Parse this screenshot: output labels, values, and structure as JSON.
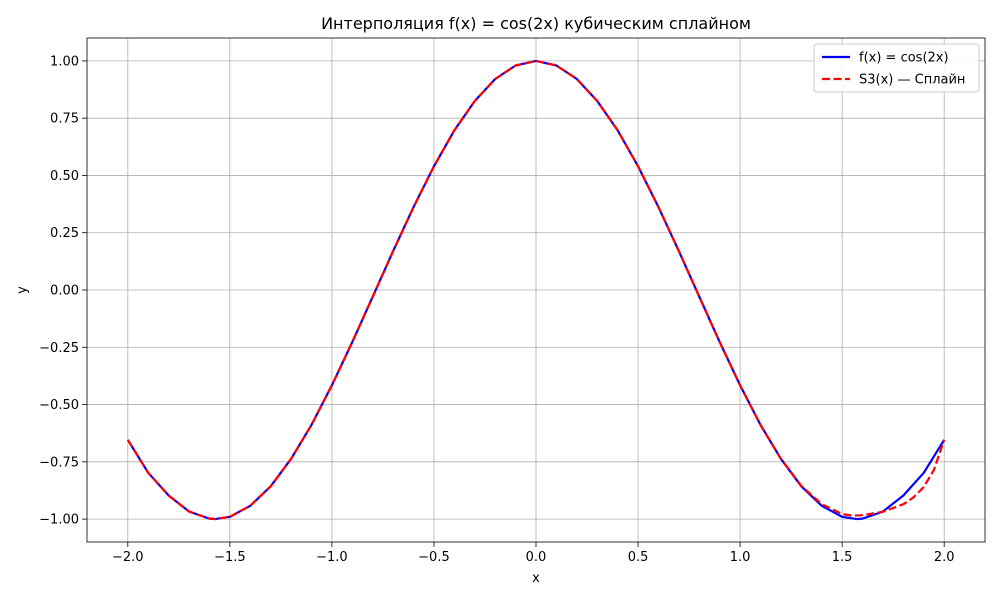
{
  "chart_data": {
    "type": "line",
    "title": "Интерполяция f(x) = cos(2x) кубическим сплайном",
    "xlabel": "x",
    "ylabel": "y",
    "xlim": [
      -2.2,
      2.2
    ],
    "ylim": [
      -1.1,
      1.1
    ],
    "xticks": [
      -2.0,
      -1.5,
      -1.0,
      -0.5,
      0.0,
      0.5,
      1.0,
      1.5,
      2.0
    ],
    "xtick_labels": [
      "−2.0",
      "−1.5",
      "−1.0",
      "−0.5",
      "0.0",
      "0.5",
      "1.0",
      "1.5",
      "2.0"
    ],
    "yticks": [
      -1.0,
      -0.75,
      -0.5,
      -0.25,
      0.0,
      0.25,
      0.5,
      0.75,
      1.0
    ],
    "ytick_labels": [
      "−1.00",
      "−0.75",
      "−0.50",
      "−0.25",
      "0.00",
      "0.25",
      "0.50",
      "0.75",
      "1.00"
    ],
    "grid": true,
    "legend_position": "top-right",
    "series": [
      {
        "name": "f(x) = cos(2x)",
        "color": "#0000ff",
        "style": "solid",
        "x": [
          -2.0,
          -1.9,
          -1.8,
          -1.7,
          -1.6,
          -1.5708,
          -1.5,
          -1.4,
          -1.3,
          -1.2,
          -1.1,
          -1.0,
          -0.9,
          -0.8,
          -0.7,
          -0.6,
          -0.5,
          -0.4,
          -0.3,
          -0.2,
          -0.1,
          0.0,
          0.1,
          0.2,
          0.3,
          0.4,
          0.5,
          0.6,
          0.7,
          0.8,
          0.9,
          1.0,
          1.1,
          1.2,
          1.3,
          1.4,
          1.5,
          1.5708,
          1.6,
          1.7,
          1.8,
          1.9,
          2.0
        ],
        "y": [
          -0.654,
          -0.798,
          -0.897,
          -0.967,
          -0.998,
          -1.0,
          -0.99,
          -0.942,
          -0.857,
          -0.737,
          -0.589,
          -0.416,
          -0.227,
          -0.029,
          0.17,
          0.362,
          0.54,
          0.697,
          0.825,
          0.921,
          0.98,
          1.0,
          0.98,
          0.921,
          0.825,
          0.697,
          0.54,
          0.362,
          0.17,
          -0.029,
          -0.227,
          -0.416,
          -0.589,
          -0.737,
          -0.857,
          -0.942,
          -0.99,
          -1.0,
          -0.998,
          -0.967,
          -0.897,
          -0.798,
          -0.654
        ]
      },
      {
        "name": "S3(x) — Сплайн",
        "color": "#ff0000",
        "style": "dashed",
        "x": [
          -2.0,
          -1.9,
          -1.8,
          -1.7,
          -1.6,
          -1.5708,
          -1.5,
          -1.4,
          -1.3,
          -1.2,
          -1.1,
          -1.0,
          -0.9,
          -0.8,
          -0.7,
          -0.6,
          -0.5,
          -0.4,
          -0.3,
          -0.2,
          -0.1,
          0.0,
          0.1,
          0.2,
          0.3,
          0.4,
          0.5,
          0.6,
          0.7,
          0.8,
          0.9,
          1.0,
          1.1,
          1.2,
          1.3,
          1.4,
          1.5,
          1.55,
          1.6,
          1.7,
          1.8,
          1.85,
          1.9,
          1.95,
          2.0
        ],
        "y": [
          -0.654,
          -0.798,
          -0.897,
          -0.967,
          -0.998,
          -1.0,
          -0.99,
          -0.942,
          -0.857,
          -0.737,
          -0.589,
          -0.416,
          -0.227,
          -0.029,
          0.17,
          0.362,
          0.54,
          0.697,
          0.825,
          0.921,
          0.98,
          1.0,
          0.98,
          0.921,
          0.825,
          0.697,
          0.54,
          0.362,
          0.17,
          -0.029,
          -0.227,
          -0.416,
          -0.589,
          -0.737,
          -0.855,
          -0.935,
          -0.978,
          -0.985,
          -0.983,
          -0.968,
          -0.935,
          -0.905,
          -0.86,
          -0.785,
          -0.654
        ]
      }
    ]
  }
}
